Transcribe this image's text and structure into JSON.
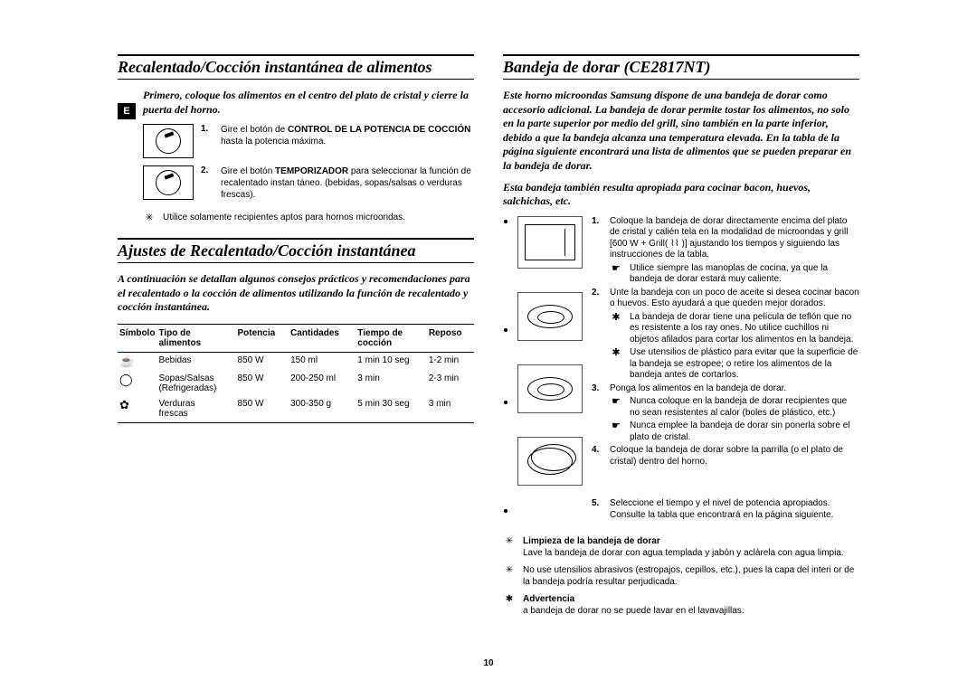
{
  "lang_badge": "E",
  "page_number": "10",
  "left": {
    "section1_title": "Recalentado/Cocción instantánea de alimentos",
    "intro1": "Primero, coloque los alimentos en el centro del plato de cristal y cierre la puerta del horno.",
    "step1_num": "1.",
    "step1_text_a": "Gire el botón de ",
    "step1_bold": "CONTROL DE LA POTENCIA DE COCCIÓN",
    "step1_text_b": " hasta la potencia máxima.",
    "step2_num": "2.",
    "step2_text_a": "Gire el botón ",
    "step2_bold": "TEMPORIZADOR",
    "step2_text_b": " para seleccionar la función de recalentado instan táneo. (bebidas, sopas/salsas o verduras frescas).",
    "note_sym": "✳",
    "note_text": "Utilice solamente recipientes aptos para hornos microondas.",
    "section2_title": "Ajustes de Recalentado/Cocción instantánea",
    "subdesc": "A continuación se detallan algunos consejos prácticos y recomendaciones para el recalentado o la cocción de alimentos utilizando la función de recalentado y cocción instantánea.",
    "table": {
      "headers": [
        "Símbolo",
        "Tipo de\nalimentos",
        "Potencia",
        "Cantidades",
        "Tiempo de\ncocción",
        "Reposo"
      ],
      "rows": [
        {
          "sym": "☕",
          "cols": [
            "Bebidas",
            "850 W",
            "150 ml",
            "1 min 10 seg",
            "1-2 min"
          ]
        },
        {
          "sym": "◯",
          "cols": [
            "Sopas/Salsas\n(Refrigeradas)",
            "850 W",
            "200-250 ml",
            "3 min",
            "2-3 min"
          ]
        },
        {
          "sym": "✿",
          "cols": [
            "Verduras\nfrescas",
            "850 W",
            "300-350 g",
            "5 min 30 seg",
            "3 min"
          ]
        }
      ]
    }
  },
  "right": {
    "section_title": "Bandeja de dorar (CE2817NT)",
    "intro1": "Este horno microondas Samsung dispone de una bandeja de dorar como accesorio adicional. La bandeja de dorar permite tostar los alimentos, no solo en la parte superior por medio del grill, sino también en la parte inferior, debido a que la bandeja alcanza una temperatura elevada. En la tabla de la página siguiente encontrará una lista de alimentos que se pueden preparar en la bandeja de dorar.",
    "intro2": "Esta bandeja también resulta apropiada para cocinar bacon, huevos, salchichas, etc.",
    "items": [
      {
        "n": "1.",
        "t": "Coloque la bandeja de dorar directamente encima del plato de cristal y calién tela en la modalidad de microondas y grill [600 W + Grill( ⌇⌇ )] ajustando los tiempos y siguiendo las instrucciones de la tabla."
      },
      {
        "sub": true,
        "s": "☛",
        "t": "Utilice siempre las manoplas de cocina, ya que la bandeja de dorar estará muy caliente."
      },
      {
        "n": "2.",
        "t": "Unte la bandeja con un poco de aceite si desea cocinar bacon o huevos. Esto ayudará a que queden mejor dorados."
      },
      {
        "sub": true,
        "s": "✱",
        "t": "La bandeja de dorar tiene una película de teflón que no es resistente a los ray ones. No utilice cuchillos ni objetos afilados para cortar los alimentos en la bandeja."
      },
      {
        "sub": true,
        "s": "✱",
        "t": "Use utensilios de plástico para evitar que la superficie de la bandeja se estropee; o retire los alimentos de la bandeja antes de cortarlos."
      },
      {
        "n": "3.",
        "t": "Ponga los alimentos en la bandeja de dorar."
      },
      {
        "sub": true,
        "s": "☛",
        "t": "Nunca coloque en la bandeja de dorar recipientes que no sean resistentes al calor (boles de plástico, etc.)"
      },
      {
        "sub": true,
        "s": "☛",
        "t": "Nunca emplee la bandeja de dorar sin ponerla sobre el plato de cristal."
      },
      {
        "n": "4.",
        "t": "Coloque la bandeja de dorar sobre la parrilla (o el plato de cristal) dentro del horno."
      },
      {
        "n": "5.",
        "t": "Seleccione el tiempo y el nivel de potencia apropiados. Consulte la tabla que encontrará en la página siguiente."
      }
    ],
    "bottom": [
      {
        "s": "✳",
        "bold": "Limpieza de la bandeja de dorar",
        "t": "Lave la bandeja de dorar con agua templada y jabón y aclárela con agua limpia."
      },
      {
        "s": "✳",
        "t": "No use utensilios abrasivos (estropajos, cepillos, etc.), pues la capa del interi or de la bandeja podría resultar perjudicada."
      },
      {
        "s": "✱",
        "bold": "Advertencia",
        "t": "a bandeja de dorar no se puede lavar en el lavavajillas."
      }
    ]
  }
}
